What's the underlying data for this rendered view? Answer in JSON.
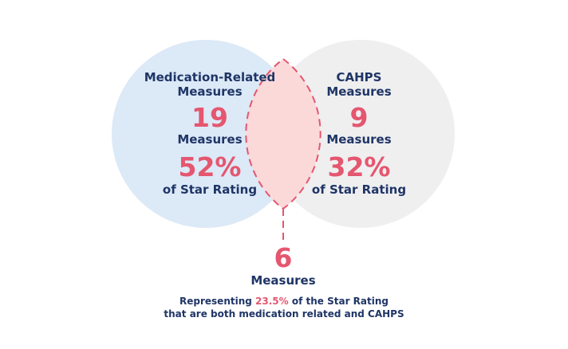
{
  "colors": {
    "left_circle": "#dce9f7",
    "right_circle": "#efeff0",
    "overlap": "#fbd9d9",
    "accent": "#e5566f",
    "text": "#1f3566"
  },
  "left": {
    "title_line1": "Medication-Related",
    "title_line2": "Measures",
    "count": "19",
    "count_label": "Measures",
    "percent": "52%",
    "percent_label": "of Star Rating"
  },
  "right": {
    "title_line1": "CAHPS",
    "title_line2": "Measures",
    "count": "9",
    "count_label": "Measures",
    "percent": "32%",
    "percent_label": "of Star Rating"
  },
  "overlap": {
    "count": "6",
    "count_label": "Measures",
    "line1_prefix": "Representing ",
    "line1_highlight": "23.5%",
    "line1_suffix": " of the Star Rating",
    "line2": "that are both medication related and CAHPS"
  }
}
